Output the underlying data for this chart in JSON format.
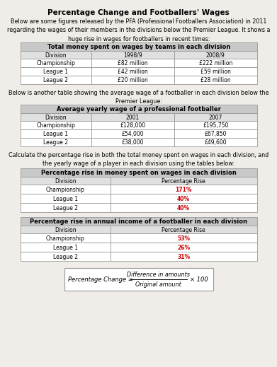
{
  "title": "Percentage Change and Footballers' Wages",
  "intro_text": "Below are some figures released by the PFA (Professional Footballers Association) in 2011\nregarding the wages of their members in the divisions below the Premier League. It shows a\nhuge rise in wages for footballers in recent times:",
  "table1_title": "Total money spent on wages by teams in each division",
  "table1_headers": [
    "Division",
    "1998/9",
    "2008/9"
  ],
  "table1_rows": [
    [
      "Championship",
      "£82 million",
      "£222 million"
    ],
    [
      "League 1",
      "£42 million",
      "£59 million"
    ],
    [
      "League 2",
      "£20 million",
      "£28 million"
    ]
  ],
  "middle_text": "Below is another table showing the average wage of a footballer in each division below the\nPremier League:",
  "table2_title": "Average yearly wage of a professional footballer",
  "table2_headers": [
    "Division",
    "2001",
    "2007"
  ],
  "table2_rows": [
    [
      "Championship",
      "£128,000",
      "£195,750"
    ],
    [
      "League 1",
      "£54,000",
      "£67,850"
    ],
    [
      "League 2",
      "£38,000",
      "£49,600"
    ]
  ],
  "calc_text": "Calculate the percentage rise in both the total money spent on wages in each division, and\nthe yearly wage of a player in each division using the tables below:",
  "table3_title": "Percentage rise in money spent on wages in each division",
  "table3_headers": [
    "Division",
    "Percentage Rise"
  ],
  "table3_rows": [
    [
      "Championship",
      "171%"
    ],
    [
      "League 1",
      "40%"
    ],
    [
      "League 2",
      "40%"
    ]
  ],
  "table4_title": "Percentage rise in annual income of a footballer in each division",
  "table4_headers": [
    "Division",
    "Percentage Rise"
  ],
  "table4_rows": [
    [
      "Championship",
      "53%"
    ],
    [
      "League 1",
      "26%"
    ],
    [
      "League 2",
      "31%"
    ]
  ],
  "formula_prefix": "Percentage Change = ",
  "formula_numerator": "Difference in amounts",
  "formula_denominator": "Original amount",
  "formula_suffix": "× 100",
  "red_color": "#cc0000",
  "bg_color": "#f0ede8",
  "border_color": "#999999",
  "title_bg": "#c8c8c8",
  "header_bg": "#e0e0e0",
  "white": "#ffffff"
}
